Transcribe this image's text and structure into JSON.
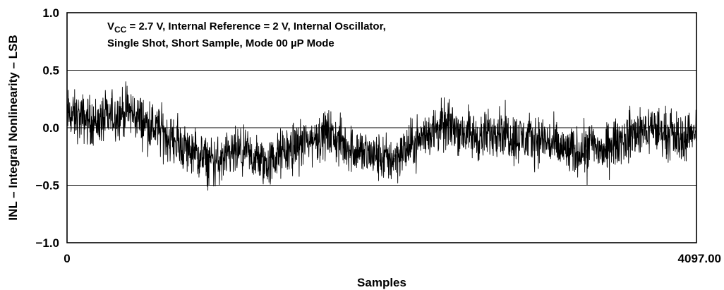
{
  "chart_data": {
    "type": "line",
    "title": "",
    "annotation": {
      "line1_prefix": "V",
      "line1_sub": "CC",
      "line1_rest": " = 2.7 V, Internal Reference = 2 V, Internal Oscillator,",
      "line2": "Single Shot, Short Sample, Mode 00 µP Mode"
    },
    "xlabel": "Samples",
    "ylabel": "INL – Integral Nonlinearity – LSB",
    "xlim": [
      0,
      4097
    ],
    "ylim": [
      -1.0,
      1.0
    ],
    "x_tick_labels": [
      "0",
      "4097.00"
    ],
    "y_tick_labels": [
      "1.0",
      "0.5",
      "0.0",
      "−0.5",
      "−1.0"
    ],
    "y_ticks": [
      1.0,
      0.5,
      0.0,
      -0.5,
      -1.0
    ],
    "grid": "horizontal",
    "series": [
      {
        "color": "#000000",
        "x": [
          0,
          100,
          200,
          300,
          400,
          500,
          600,
          700,
          800,
          900,
          1000,
          1100,
          1200,
          1300,
          1400,
          1500,
          1600,
          1700,
          1800,
          1900,
          2000,
          2100,
          2200,
          2300,
          2400,
          2500,
          2600,
          2700,
          2800,
          2900,
          3000,
          3100,
          3200,
          3300,
          3400,
          3500,
          3600,
          3700,
          3800,
          3900,
          4000,
          4097
        ],
        "values": [
          0.12,
          0.08,
          0.05,
          0.1,
          0.15,
          0.05,
          -0.02,
          -0.12,
          -0.2,
          -0.28,
          -0.3,
          -0.22,
          -0.25,
          -0.32,
          -0.22,
          -0.15,
          -0.1,
          -0.05,
          -0.15,
          -0.2,
          -0.25,
          -0.28,
          -0.2,
          -0.1,
          0.0,
          0.02,
          -0.05,
          -0.1,
          0.0,
          -0.08,
          -0.1,
          -0.1,
          -0.18,
          -0.22,
          -0.15,
          -0.2,
          -0.1,
          -0.05,
          0.0,
          -0.05,
          -0.1,
          0.0
        ],
        "fluctuation_amplitude": 0.13
      }
    ]
  }
}
